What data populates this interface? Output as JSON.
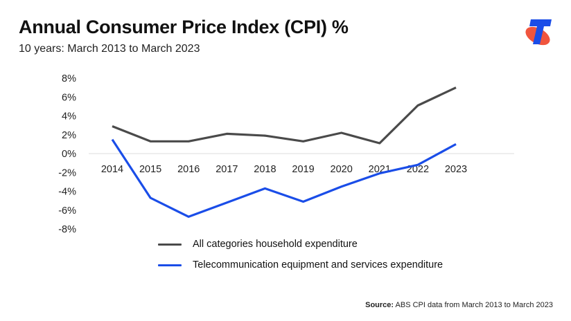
{
  "header": {
    "title": "Annual Consumer Price Index (CPI) %",
    "subtitle": "10 years: March 2013 to March 2023"
  },
  "logo": {
    "icon": "telstra-logo-icon",
    "colors": {
      "t": "#1a4de8",
      "ellipse": "#f0553e"
    }
  },
  "footer": {
    "source_label": "Source:",
    "source_text": " ABS CPI data from March 2013 to March 2023"
  },
  "chart_data": {
    "type": "line",
    "title": "Annual Consumer Price Index (CPI) %",
    "subtitle": "10 years: March 2013 to March 2023",
    "xlabel": "",
    "ylabel": "",
    "x": [
      "2014",
      "2015",
      "2016",
      "2017",
      "2018",
      "2019",
      "2020",
      "2021",
      "2022",
      "2023"
    ],
    "ylim": [
      -8,
      8
    ],
    "yticks": [
      8,
      6,
      4,
      2,
      0,
      -2,
      -4,
      -6,
      -8
    ],
    "ytick_labels": [
      "8%",
      "6%",
      "4%",
      "2%",
      "0%",
      "-2%",
      "-4%",
      "-6%",
      "-8%"
    ],
    "grid": false,
    "zero_line": true,
    "legend_position": "bottom-center",
    "series": [
      {
        "name": "All categories household expenditure",
        "color": "#4a4a4a",
        "values": [
          2.9,
          1.3,
          1.3,
          2.1,
          1.9,
          1.3,
          2.2,
          1.1,
          5.1,
          7.0
        ]
      },
      {
        "name": "Telecommunication equipment and services expenditure",
        "color": "#1a4de8",
        "values": [
          1.5,
          -4.7,
          -6.7,
          -5.2,
          -3.7,
          -5.1,
          -3.5,
          -2.1,
          -1.2,
          1.0
        ]
      }
    ],
    "source": "Source: ABS CPI data from March 2013 to March 2023"
  }
}
